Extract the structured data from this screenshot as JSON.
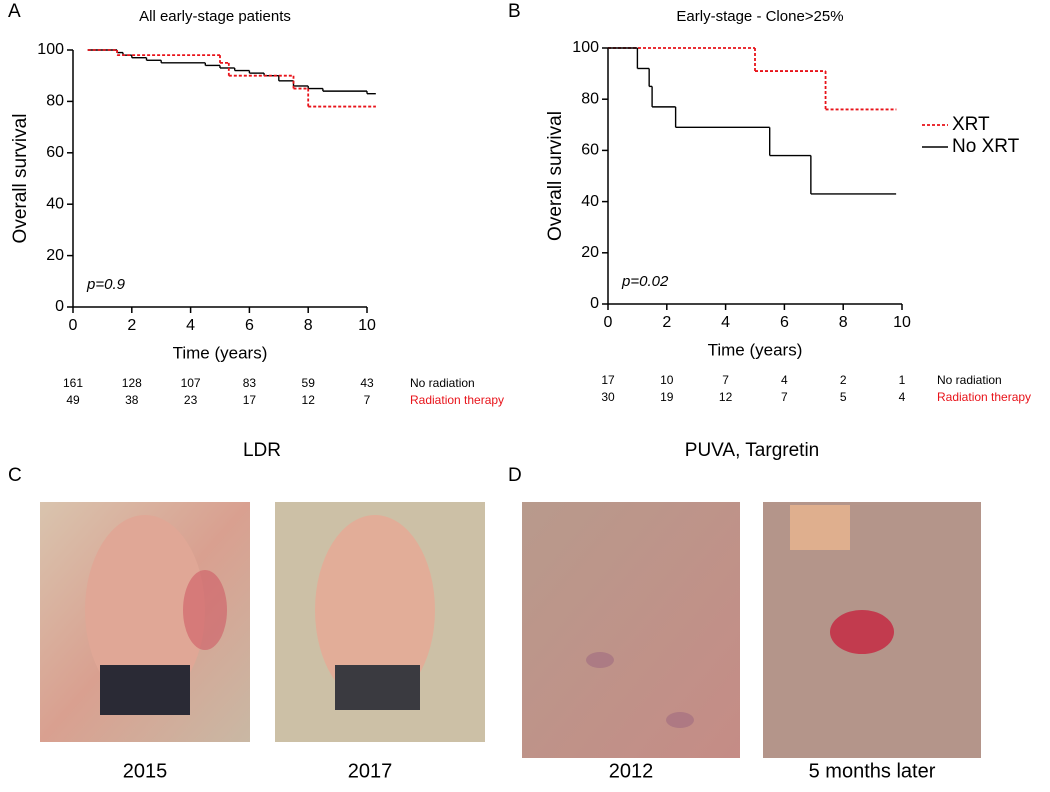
{
  "chart_data": [
    {
      "type": "step",
      "panel_label": "A",
      "title": "All early-stage patients",
      "x_label": "Time (years)",
      "y_label": "Overall survival",
      "annotation": "p=0.9",
      "xlim": [
        0,
        10
      ],
      "ylim": [
        0,
        100
      ],
      "xticks": [
        0,
        2,
        4,
        6,
        8,
        10
      ],
      "yticks": [
        0,
        20,
        40,
        60,
        80,
        100
      ],
      "series": [
        {
          "color": "#000000",
          "dashed": false,
          "x": [
            0.5,
            1.5,
            1.7,
            2,
            2.5,
            3,
            4.5,
            5,
            5.5,
            6,
            6.5,
            7,
            7.5,
            8,
            8.5,
            10,
            10.3
          ],
          "values": [
            100,
            99,
            98,
            97,
            96,
            95,
            94,
            93,
            92,
            91,
            90,
            88,
            86,
            85,
            84,
            83,
            83
          ]
        },
        {
          "color": "#e8131a",
          "dashed": true,
          "x": [
            0.5,
            1.5,
            5,
            5.3,
            7.5,
            8,
            10.3
          ],
          "values": [
            100,
            98,
            95,
            90,
            85,
            78,
            78
          ]
        }
      ],
      "risk_table": {
        "x": [
          0,
          2,
          4,
          6,
          8,
          10
        ],
        "rows": [
          {
            "label": "No radiation",
            "color": "#000000",
            "values": [
              161,
              128,
              107,
              83,
              59,
              43
            ]
          },
          {
            "label": "Radiation therapy",
            "color": "#e8131a",
            "values": [
              49,
              38,
              23,
              17,
              12,
              7
            ]
          }
        ]
      }
    },
    {
      "type": "step",
      "panel_label": "B",
      "title": "Early-stage - Clone>25%",
      "x_label": "Time (years)",
      "y_label": "Overall survival",
      "annotation": "p=0.02",
      "xlim": [
        0,
        10
      ],
      "ylim": [
        0,
        100
      ],
      "xticks": [
        0,
        2,
        4,
        6,
        8,
        10
      ],
      "yticks": [
        0,
        20,
        40,
        60,
        80,
        100
      ],
      "series": [
        {
          "name": "XRT",
          "color": "#e8131a",
          "dashed": true,
          "x": [
            0,
            5,
            7.4,
            9.8
          ],
          "values": [
            100,
            91,
            76,
            76
          ]
        },
        {
          "name": "No XRT",
          "color": "#000000",
          "dashed": false,
          "x": [
            0,
            1,
            1.4,
            1.5,
            2.3,
            5.5,
            6.9,
            9.8
          ],
          "values": [
            100,
            92,
            85,
            77,
            69,
            58,
            43,
            43
          ]
        }
      ],
      "risk_table": {
        "x": [
          0,
          2,
          4,
          6,
          8,
          10
        ],
        "rows": [
          {
            "label": "No radiation",
            "color": "#000000",
            "values": [
              17,
              10,
              7,
              4,
              2,
              1
            ]
          },
          {
            "label": "Radiation therapy",
            "color": "#e8131a",
            "values": [
              30,
              19,
              12,
              7,
              5,
              4
            ]
          }
        ]
      }
    }
  ],
  "photo_panels": [
    {
      "panel_label": "C",
      "title": "LDR",
      "captions": [
        "2015",
        "2017"
      ]
    },
    {
      "panel_label": "D",
      "title": "PUVA, Targretin",
      "captions": [
        "2012",
        "5 months later"
      ]
    }
  ]
}
